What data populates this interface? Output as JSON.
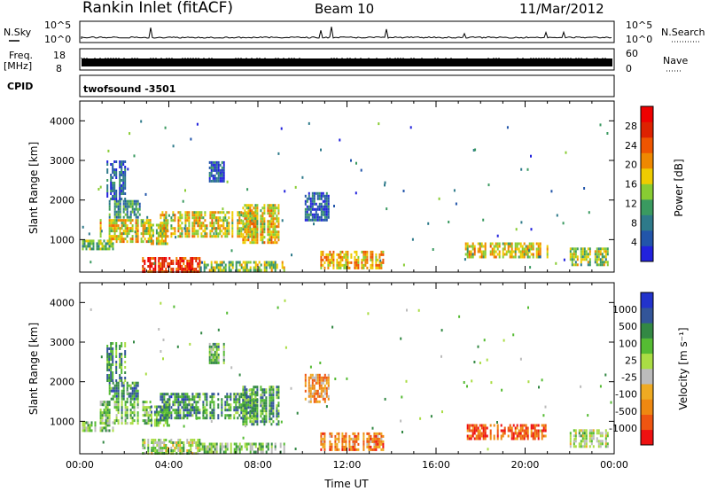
{
  "header": {
    "station": "Rankin Inlet (fitACF)",
    "beam": "Beam 10",
    "date": "11/Mar/2012"
  },
  "strips": {
    "nsky_label": "N.Sky",
    "nsky_top_tick": "10^5",
    "nsky_bottom_tick": "10^0",
    "nsearch_label": "N.Search",
    "nsearch_top_tick": "10^5",
    "nsearch_bottom_tick": "10^0",
    "freq_label": "Freq.",
    "freq_unit": "[MHz]",
    "freq_ticks": [
      "18",
      "8"
    ],
    "nave_label": "Nave",
    "nave_ticks": [
      "60",
      "0"
    ],
    "cpid_label": "CPID",
    "cpid_value": "twofsound -3501"
  },
  "colors": {
    "power_scale": [
      "#2222dd",
      "#2255aa",
      "#2e7a8a",
      "#3a9a60",
      "#88cc33",
      "#eecc00",
      "#ee8800",
      "#ee5500",
      "#dd2200",
      "#ee0000"
    ],
    "velocity_scale": [
      "#ee1111",
      "#ee5511",
      "#ee8811",
      "#eeaa22",
      "#bbbbbb",
      "#aadd44",
      "#55bb33",
      "#338844",
      "#335599",
      "#2233cc"
    ]
  },
  "chart_data": [
    {
      "type": "heatmap",
      "name": "power",
      "xlabel": "",
      "ylabel": "Slant Range [km]",
      "yticks": [
        "1000",
        "2000",
        "3000",
        "4000"
      ],
      "ylim": [
        180,
        4500
      ],
      "xlim": [
        0,
        24
      ],
      "colorbar": {
        "label": "Power [dB]",
        "ticks": [
          "4",
          "8",
          "12",
          "16",
          "20",
          "24",
          "28"
        ],
        "range": [
          0,
          32
        ]
      },
      "regions": [
        {
          "t0": 0.1,
          "t1": 1.5,
          "r0": 760,
          "r1": 1000,
          "level": 0.4
        },
        {
          "t0": 0.9,
          "t1": 3.2,
          "r0": 920,
          "r1": 1520,
          "level": 0.55
        },
        {
          "t0": 1.3,
          "t1": 2.7,
          "r0": 1550,
          "r1": 2000,
          "level": 0.3
        },
        {
          "t0": 1.2,
          "t1": 2.0,
          "r0": 2000,
          "r1": 3000,
          "level": 0.2
        },
        {
          "t0": 3.1,
          "t1": 4.0,
          "r0": 880,
          "r1": 1400,
          "level": 0.5
        },
        {
          "t0": 3.6,
          "t1": 6.1,
          "r0": 1050,
          "r1": 1720,
          "level": 0.55
        },
        {
          "t0": 6.1,
          "t1": 8.0,
          "r0": 1100,
          "r1": 1720,
          "level": 0.5
        },
        {
          "t0": 7.3,
          "t1": 8.9,
          "r0": 900,
          "r1": 1900,
          "level": 0.55
        },
        {
          "t0": 5.8,
          "t1": 6.5,
          "r0": 2450,
          "r1": 2980,
          "level": 0.15
        },
        {
          "t0": 2.8,
          "t1": 5.4,
          "r0": 200,
          "r1": 560,
          "level": 0.82
        },
        {
          "t0": 5.4,
          "t1": 9.2,
          "r0": 200,
          "r1": 460,
          "level": 0.45
        },
        {
          "t0": 10.1,
          "t1": 11.2,
          "r0": 1480,
          "r1": 2200,
          "level": 0.18
        },
        {
          "t0": 10.8,
          "t1": 13.6,
          "r0": 300,
          "r1": 720,
          "level": 0.62
        },
        {
          "t0": 17.3,
          "t1": 21.0,
          "r0": 560,
          "r1": 930,
          "level": 0.55
        },
        {
          "t0": 22.0,
          "t1": 23.8,
          "r0": 380,
          "r1": 800,
          "level": 0.45
        }
      ]
    },
    {
      "type": "heatmap",
      "name": "velocity",
      "xlabel": "Time UT",
      "ylabel": "Slant Range [km]",
      "xticks": [
        "00:00",
        "04:00",
        "08:00",
        "12:00",
        "16:00",
        "20:00",
        "00:00"
      ],
      "yticks": [
        "1000",
        "2000",
        "3000",
        "4000"
      ],
      "ylim": [
        180,
        4500
      ],
      "xlim": [
        0,
        24
      ],
      "colorbar": {
        "label": "Velocity [m s⁻¹]",
        "ticks": [
          "-1000",
          "-500",
          "-100",
          "-25",
          "25",
          "100",
          "500",
          "1000"
        ],
        "range": [
          -1500,
          1500
        ]
      },
      "regions": [
        {
          "t0": 0.1,
          "t1": 1.5,
          "r0": 760,
          "r1": 1000,
          "level": 0.6
        },
        {
          "t0": 0.9,
          "t1": 3.2,
          "r0": 920,
          "r1": 1520,
          "level": 0.63
        },
        {
          "t0": 1.3,
          "t1": 2.7,
          "r0": 1550,
          "r1": 2000,
          "level": 0.75
        },
        {
          "t0": 1.2,
          "t1": 2.0,
          "r0": 2000,
          "r1": 3000,
          "level": 0.72
        },
        {
          "t0": 3.1,
          "t1": 4.0,
          "r0": 880,
          "r1": 1400,
          "level": 0.7
        },
        {
          "t0": 3.6,
          "t1": 6.1,
          "r0": 1050,
          "r1": 1720,
          "level": 0.74
        },
        {
          "t0": 6.1,
          "t1": 8.0,
          "r0": 1100,
          "r1": 1720,
          "level": 0.72
        },
        {
          "t0": 7.3,
          "t1": 8.9,
          "r0": 900,
          "r1": 1900,
          "level": 0.7
        },
        {
          "t0": 5.8,
          "t1": 6.5,
          "r0": 2450,
          "r1": 2980,
          "level": 0.64
        },
        {
          "t0": 2.8,
          "t1": 5.4,
          "r0": 200,
          "r1": 560,
          "level": 0.55
        },
        {
          "t0": 5.4,
          "t1": 9.2,
          "r0": 200,
          "r1": 460,
          "level": 0.58
        },
        {
          "t0": 10.1,
          "t1": 11.2,
          "r0": 1480,
          "r1": 2200,
          "level": 0.3
        },
        {
          "t0": 10.8,
          "t1": 13.6,
          "r0": 300,
          "r1": 720,
          "level": 0.24
        },
        {
          "t0": 17.3,
          "t1": 21.0,
          "r0": 560,
          "r1": 930,
          "level": 0.15
        },
        {
          "t0": 22.0,
          "t1": 23.8,
          "r0": 380,
          "r1": 800,
          "level": 0.55
        }
      ]
    }
  ]
}
